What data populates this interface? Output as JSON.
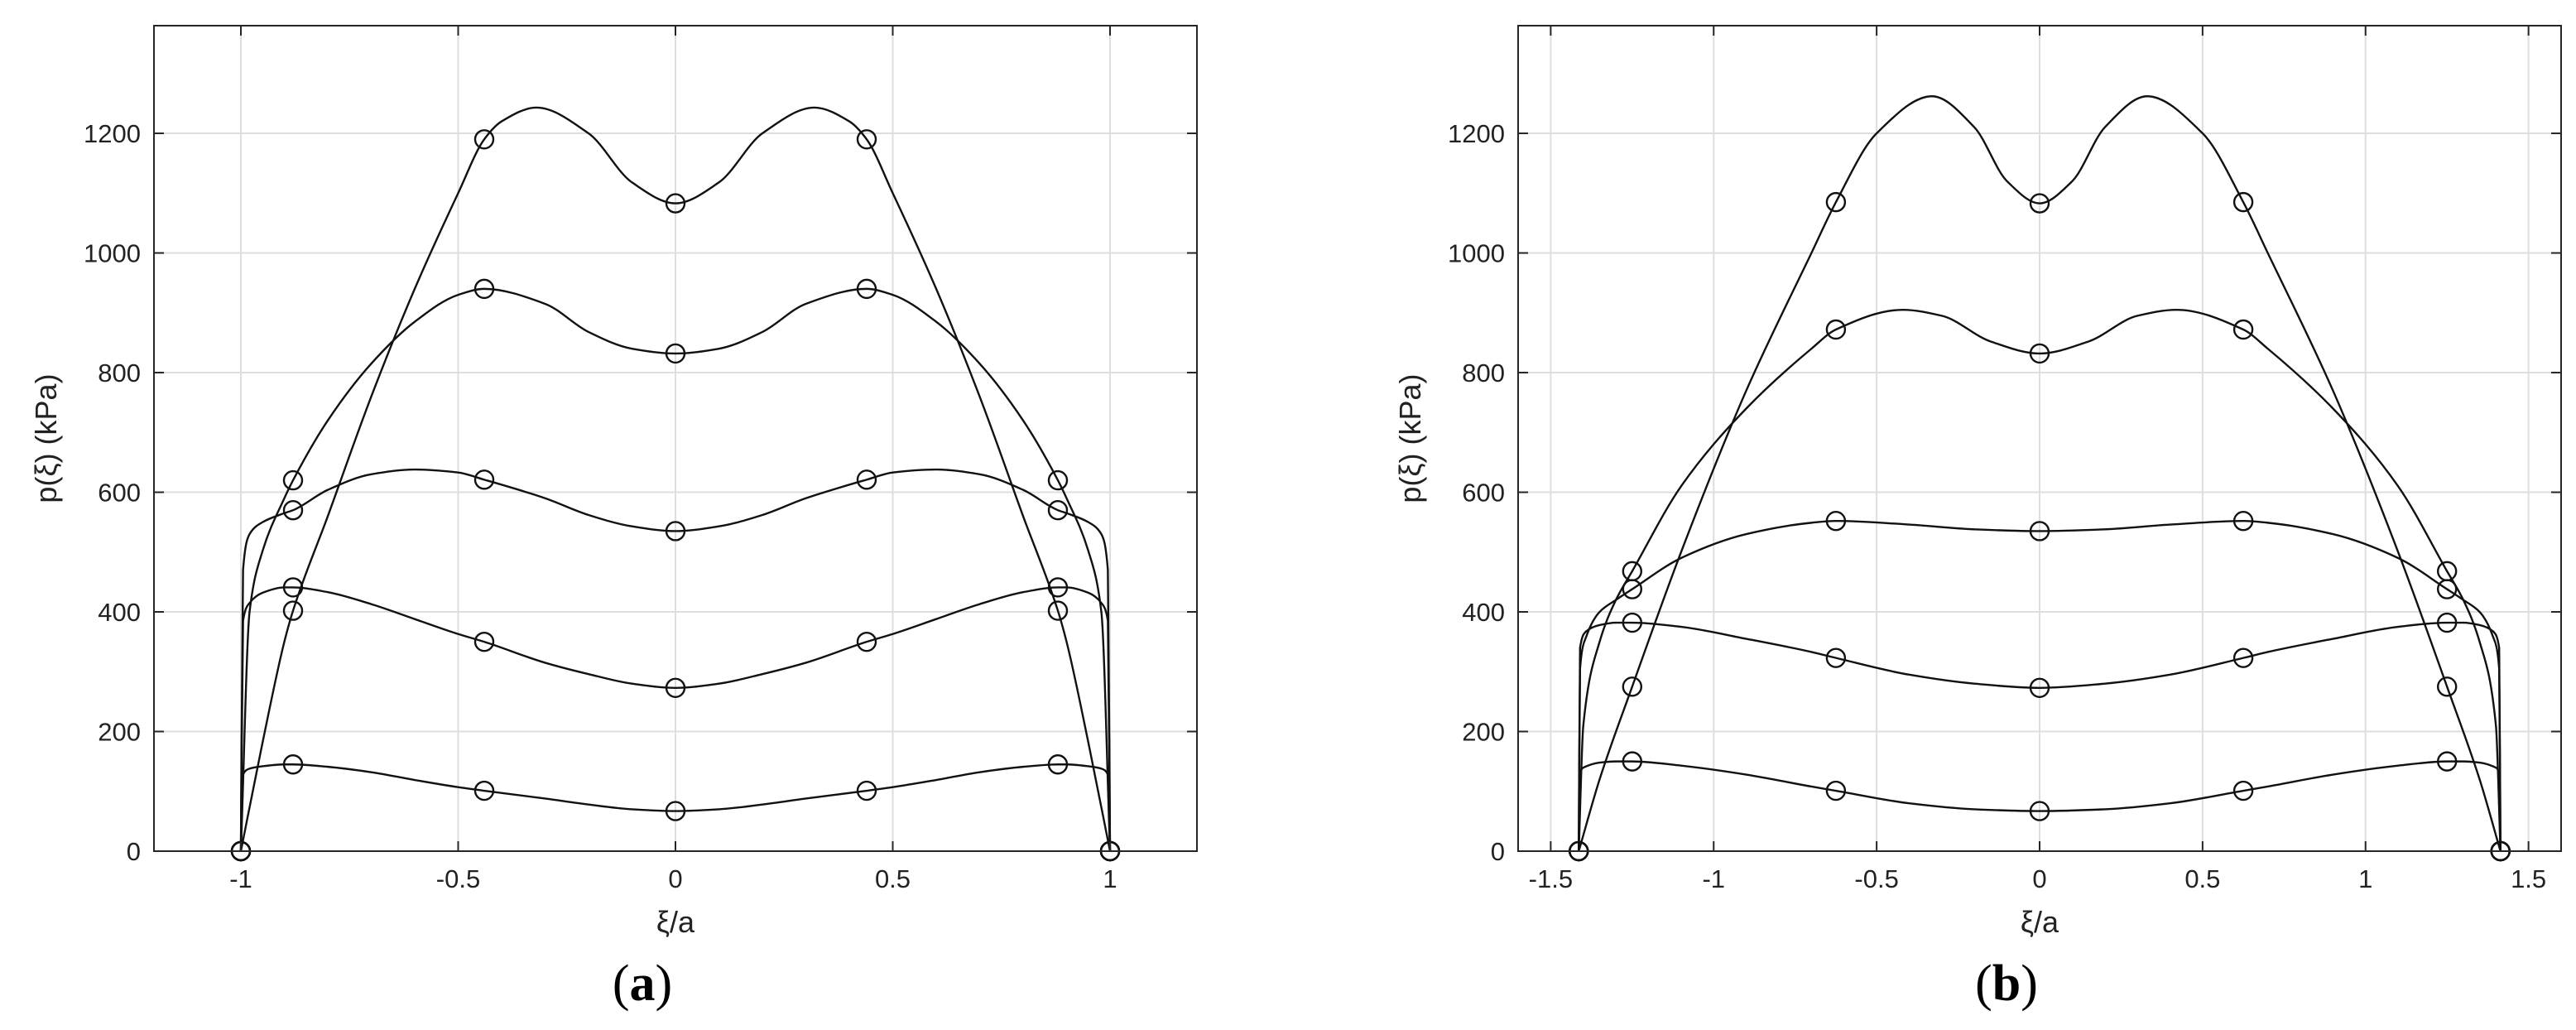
{
  "chart_data": [
    {
      "type": "line",
      "panel_label": "(a)",
      "xlabel": "ξ/a",
      "ylabel": "p(ξ) (kPa)",
      "xlim": [
        -1.2,
        1.2
      ],
      "ylim": [
        0,
        1380
      ],
      "xticks": [
        -1,
        -0.5,
        0,
        0.5,
        1
      ],
      "xtick_labels": [
        "-1",
        "-0.5",
        "0",
        "0.5",
        "1"
      ],
      "yticks": [
        0,
        200,
        400,
        600,
        800,
        1000,
        1200
      ],
      "ytick_labels": [
        "0",
        "200",
        "400",
        "600",
        "800",
        "1000",
        "1200"
      ],
      "grid": true,
      "series": [
        {
          "x": [
            -1,
            -0.995,
            -0.98,
            -0.95,
            -0.9,
            -0.88,
            -0.8,
            -0.7,
            -0.6,
            -0.5,
            -0.44,
            -0.3,
            -0.2,
            -0.1,
            0,
            0.1,
            0.2,
            0.3,
            0.44,
            0.5,
            0.6,
            0.7,
            0.8,
            0.88,
            0.9,
            0.95,
            0.98,
            0.995,
            1
          ],
          "y": [
            0,
            128,
            138,
            142,
            145,
            145,
            141,
            132,
            119,
            107,
            101,
            88,
            78,
            70,
            67,
            70,
            78,
            88,
            101,
            107,
            119,
            132,
            141,
            145,
            145,
            142,
            138,
            128,
            0
          ],
          "markers": [
            [
              -1,
              0
            ],
            [
              -0.88,
              145
            ],
            [
              -0.44,
              101
            ],
            [
              0,
              67
            ],
            [
              0.44,
              101
            ],
            [
              0.88,
              145
            ],
            [
              1,
              0
            ]
          ]
        },
        {
          "x": [
            -1,
            -0.995,
            -0.98,
            -0.95,
            -0.9,
            -0.88,
            -0.8,
            -0.7,
            -0.6,
            -0.5,
            -0.44,
            -0.3,
            -0.2,
            -0.1,
            0,
            0.1,
            0.2,
            0.3,
            0.44,
            0.5,
            0.6,
            0.7,
            0.8,
            0.88,
            0.9,
            0.95,
            0.98,
            0.995,
            1
          ],
          "y": [
            0,
            385,
            415,
            432,
            441,
            441,
            433,
            413,
            388,
            363,
            350,
            315,
            296,
            280,
            273,
            280,
            296,
            315,
            350,
            363,
            388,
            413,
            433,
            441,
            441,
            432,
            415,
            385,
            0
          ],
          "markers": [
            [
              -1,
              0
            ],
            [
              -0.88,
              441
            ],
            [
              -0.44,
              350
            ],
            [
              0,
              273
            ],
            [
              0.44,
              350
            ],
            [
              0.88,
              441
            ],
            [
              1,
              0
            ]
          ]
        },
        {
          "x": [
            -1,
            -0.995,
            -0.98,
            -0.95,
            -0.9,
            -0.88,
            -0.8,
            -0.7,
            -0.6,
            -0.5,
            -0.44,
            -0.3,
            -0.2,
            -0.1,
            0,
            0.1,
            0.2,
            0.3,
            0.44,
            0.5,
            0.6,
            0.7,
            0.8,
            0.88,
            0.9,
            0.95,
            0.98,
            0.995,
            1
          ],
          "y": [
            0,
            470,
            530,
            550,
            565,
            570,
            604,
            630,
            638,
            633,
            621,
            590,
            562,
            543,
            535,
            543,
            562,
            590,
            621,
            633,
            638,
            630,
            604,
            570,
            565,
            550,
            530,
            470,
            0
          ],
          "markers": [
            [
              -1,
              0
            ],
            [
              -0.88,
              570
            ],
            [
              -0.44,
              621
            ],
            [
              0,
              535
            ],
            [
              0.44,
              621
            ],
            [
              0.88,
              570
            ],
            [
              1,
              0
            ]
          ]
        },
        {
          "x": [
            -1,
            -0.98,
            -0.95,
            -0.9,
            -0.88,
            -0.8,
            -0.7,
            -0.6,
            -0.5,
            -0.44,
            -0.3,
            -0.2,
            -0.1,
            0,
            0.1,
            0.2,
            0.3,
            0.44,
            0.5,
            0.6,
            0.7,
            0.8,
            0.88,
            0.9,
            0.95,
            0.98,
            1
          ],
          "y": [
            0,
            400,
            502,
            590,
            620,
            720,
            815,
            885,
            930,
            940,
            915,
            868,
            840,
            832,
            840,
            868,
            915,
            940,
            930,
            885,
            815,
            720,
            620,
            590,
            502,
            400,
            0
          ],
          "markers": [
            [
              -1,
              0
            ],
            [
              -0.88,
              620
            ],
            [
              -0.44,
              940
            ],
            [
              0,
              832
            ],
            [
              0.44,
              940
            ],
            [
              0.88,
              620
            ],
            [
              1,
              0
            ]
          ]
        },
        {
          "x": [
            -1,
            -0.95,
            -0.9,
            -0.88,
            -0.8,
            -0.7,
            -0.6,
            -0.5,
            -0.44,
            -0.4,
            -0.32,
            -0.2,
            -0.1,
            0,
            0.1,
            0.2,
            0.32,
            0.4,
            0.44,
            0.5,
            0.6,
            0.7,
            0.8,
            0.88,
            0.9,
            0.95,
            1
          ],
          "y": [
            0,
            182,
            350,
            402,
            560,
            760,
            940,
            1100,
            1190,
            1220,
            1243,
            1200,
            1118,
            1083,
            1118,
            1200,
            1243,
            1220,
            1190,
            1100,
            940,
            760,
            560,
            402,
            350,
            182,
            0
          ],
          "markers": [
            [
              -1,
              0
            ],
            [
              -0.88,
              402
            ],
            [
              -0.44,
              1190
            ],
            [
              0,
              1083
            ],
            [
              0.44,
              1190
            ],
            [
              0.88,
              402
            ],
            [
              1,
              0
            ]
          ]
        }
      ]
    },
    {
      "type": "line",
      "panel_label": "(b)",
      "xlabel": "ξ/a",
      "ylabel": "p(ξ) (kPa)",
      "xlim": [
        -1.6,
        1.6
      ],
      "ylim": [
        0,
        1380
      ],
      "xticks": [
        -1.5,
        -1,
        -0.5,
        0,
        0.5,
        1,
        1.5
      ],
      "xtick_labels": [
        "-1.5",
        "-1",
        "-0.5",
        "0",
        "0.5",
        "1",
        "1.5"
      ],
      "yticks": [
        0,
        200,
        400,
        600,
        800,
        1000,
        1200
      ],
      "ytick_labels": [
        "0",
        "200",
        "400",
        "600",
        "800",
        "1000",
        "1200"
      ],
      "grid": true,
      "series": [
        {
          "x": [
            -1.414,
            -1.41,
            -1.39,
            -1.35,
            -1.3,
            -1.25,
            -1.1,
            -0.9,
            -0.7,
            -0.625,
            -0.4,
            -0.2,
            0,
            0.2,
            0.4,
            0.625,
            0.7,
            0.9,
            1.1,
            1.25,
            1.3,
            1.35,
            1.39,
            1.41,
            1.414
          ],
          "y": [
            0,
            133,
            142,
            148,
            150,
            150,
            143,
            128,
            108,
            101,
            80,
            70,
            67,
            70,
            80,
            101,
            108,
            128,
            143,
            150,
            150,
            148,
            142,
            133,
            0
          ],
          "markers": [
            [
              -1.414,
              0
            ],
            [
              -1.25,
              150
            ],
            [
              -0.625,
              101
            ],
            [
              0,
              67
            ],
            [
              0.625,
              101
            ],
            [
              1.25,
              150
            ],
            [
              1.414,
              0
            ]
          ]
        },
        {
          "x": [
            -1.414,
            -1.41,
            -1.39,
            -1.35,
            -1.3,
            -1.25,
            -1.1,
            -0.9,
            -0.7,
            -0.625,
            -0.4,
            -0.2,
            0,
            0.2,
            0.4,
            0.625,
            0.7,
            0.9,
            1.1,
            1.25,
            1.3,
            1.35,
            1.39,
            1.41,
            1.414
          ],
          "y": [
            0,
            340,
            368,
            378,
            382,
            382,
            375,
            355,
            333,
            323,
            295,
            280,
            273,
            280,
            295,
            323,
            333,
            355,
            375,
            382,
            382,
            378,
            368,
            340,
            0
          ],
          "markers": [
            [
              -1.414,
              0
            ],
            [
              -1.25,
              382
            ],
            [
              -0.625,
              323
            ],
            [
              0,
              273
            ],
            [
              0.625,
              323
            ],
            [
              1.25,
              382
            ],
            [
              1.414,
              0
            ]
          ]
        },
        {
          "x": [
            -1.414,
            -1.41,
            -1.39,
            -1.35,
            -1.3,
            -1.25,
            -1.1,
            -0.9,
            -0.7,
            -0.625,
            -0.4,
            -0.2,
            0,
            0.2,
            0.4,
            0.625,
            0.7,
            0.9,
            1.1,
            1.25,
            1.3,
            1.35,
            1.39,
            1.41,
            1.414
          ],
          "y": [
            0,
            305,
            360,
            400,
            420,
            438,
            490,
            530,
            549,
            552,
            546,
            538,
            535,
            538,
            546,
            552,
            549,
            530,
            490,
            438,
            420,
            400,
            360,
            305,
            0
          ],
          "markers": [
            [
              -1.414,
              0
            ],
            [
              -1.25,
              438
            ],
            [
              -0.625,
              552
            ],
            [
              0,
              535
            ],
            [
              0.625,
              552
            ],
            [
              1.25,
              438
            ],
            [
              1.414,
              0
            ]
          ]
        },
        {
          "x": [
            -1.414,
            -1.4,
            -1.35,
            -1.3,
            -1.25,
            -1.1,
            -0.9,
            -0.7,
            -0.625,
            -0.42,
            -0.3,
            -0.15,
            0,
            0.15,
            0.3,
            0.42,
            0.625,
            0.7,
            0.9,
            1.1,
            1.25,
            1.3,
            1.35,
            1.4,
            1.414
          ],
          "y": [
            0,
            210,
            350,
            420,
            468,
            610,
            740,
            840,
            872,
            905,
            895,
            852,
            832,
            852,
            895,
            905,
            872,
            840,
            740,
            610,
            468,
            420,
            350,
            210,
            0
          ],
          "markers": [
            [
              -1.414,
              0
            ],
            [
              -1.25,
              468
            ],
            [
              -0.625,
              872
            ],
            [
              0,
              832
            ],
            [
              0.625,
              872
            ],
            [
              1.25,
              468
            ],
            [
              1.414,
              0
            ]
          ]
        },
        {
          "x": [
            -1.414,
            -1.35,
            -1.25,
            -1.1,
            -0.9,
            -0.7,
            -0.625,
            -0.5,
            -0.33,
            -0.2,
            -0.1,
            0,
            0.1,
            0.2,
            0.33,
            0.5,
            0.625,
            0.7,
            0.9,
            1.1,
            1.25,
            1.35,
            1.414
          ],
          "y": [
            0,
            120,
            275,
            500,
            770,
            1000,
            1085,
            1200,
            1262,
            1210,
            1120,
            1083,
            1120,
            1210,
            1262,
            1200,
            1085,
            1000,
            770,
            500,
            275,
            120,
            0
          ],
          "markers": [
            [
              -1.414,
              0
            ],
            [
              -1.25,
              275
            ],
            [
              -0.625,
              1085
            ],
            [
              0,
              1083
            ],
            [
              0.625,
              1085
            ],
            [
              1.25,
              275
            ],
            [
              1.414,
              0
            ]
          ]
        }
      ]
    }
  ]
}
